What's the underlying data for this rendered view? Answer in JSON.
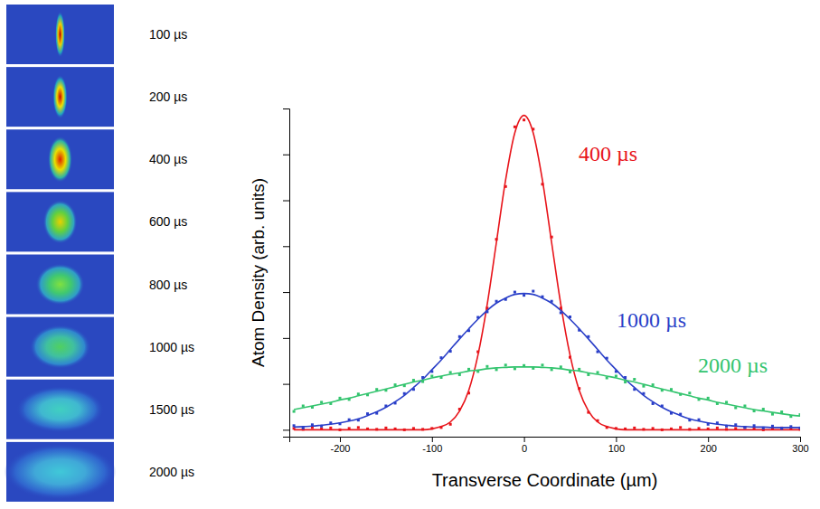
{
  "image_panel": {
    "frames": [
      {
        "label": "100 µs"
      },
      {
        "label": "200 µs"
      },
      {
        "label": "400 µs"
      },
      {
        "label": "600 µs"
      },
      {
        "label": "800 µs"
      },
      {
        "label": "1000 µs"
      },
      {
        "label": "1500 µs"
      },
      {
        "label": "2000 µs"
      }
    ]
  },
  "chart_data": {
    "type": "scatter",
    "xlabel": "Transverse Coordinate (µm)",
    "ylabel": "Atom Density (arb. units)",
    "xlim": [
      -255,
      300
    ],
    "ylim": [
      -0.15,
      7
    ],
    "xticks": [
      -200,
      -100,
      0,
      100,
      200,
      300
    ],
    "yticks": [
      0,
      1,
      2,
      3,
      4,
      5,
      6
    ],
    "tick_labels": "x",
    "grid": false,
    "x": [
      -250,
      -240,
      -230,
      -220,
      -210,
      -200,
      -190,
      -180,
      -170,
      -160,
      -150,
      -140,
      -130,
      -120,
      -110,
      -100,
      -90,
      -80,
      -70,
      -60,
      -50,
      -40,
      -30,
      -20,
      -10,
      0,
      10,
      20,
      30,
      40,
      50,
      60,
      70,
      80,
      90,
      100,
      110,
      120,
      130,
      140,
      150,
      160,
      170,
      180,
      190,
      200,
      210,
      220,
      230,
      240,
      250,
      260,
      270,
      280,
      290,
      300
    ],
    "series": [
      {
        "name": "400 µs",
        "color": "#e8141a",
        "marker": "square",
        "line_style": "solid",
        "values": [
          0.03,
          0.01,
          0.05,
          0.02,
          0.04,
          0.0,
          0.03,
          0.05,
          0.02,
          0.01,
          0.04,
          0.02,
          0.0,
          0.03,
          0.01,
          0.03,
          0.05,
          0.12,
          0.45,
          0.8,
          1.7,
          2.65,
          4.15,
          5.3,
          6.6,
          6.75,
          6.55,
          5.35,
          4.2,
          2.65,
          1.58,
          0.9,
          0.38,
          0.2,
          0.05,
          0.03,
          0.02,
          0.04,
          0.01,
          0.03,
          0.0,
          0.02,
          0.05,
          0.01,
          0.03,
          0.02,
          0.04,
          0.01,
          0.03,
          0.05,
          0.02,
          0.0,
          0.03,
          0.04,
          0.02,
          0.01
        ],
        "fit": [
          0,
          0,
          0,
          0,
          0,
          0,
          0,
          0,
          0,
          0,
          0,
          0,
          0,
          0,
          0,
          0.02,
          0.07,
          0.17,
          0.41,
          0.86,
          1.63,
          2.73,
          4.08,
          5.44,
          6.47,
          6.85,
          6.47,
          5.44,
          4.08,
          2.73,
          1.63,
          0.86,
          0.41,
          0.17,
          0.07,
          0.02,
          0,
          0,
          0,
          0,
          0,
          0,
          0,
          0,
          0,
          0,
          0,
          0,
          0,
          0,
          0,
          0,
          0,
          0,
          0,
          0
        ]
      },
      {
        "name": "1000 µs",
        "color": "#2a3fc8",
        "marker": "square",
        "line_style": "solid",
        "values": [
          0.09,
          0.04,
          0.11,
          0.08,
          0.15,
          0.13,
          0.22,
          0.21,
          0.35,
          0.36,
          0.52,
          0.58,
          0.79,
          0.88,
          1.14,
          1.27,
          1.57,
          1.71,
          2.03,
          2.16,
          2.45,
          2.57,
          2.8,
          2.84,
          3.0,
          2.93,
          3.02,
          2.9,
          2.8,
          2.55,
          2.46,
          2.17,
          2.03,
          1.7,
          1.56,
          1.27,
          1.14,
          0.88,
          0.79,
          0.57,
          0.52,
          0.36,
          0.34,
          0.21,
          0.22,
          0.12,
          0.15,
          0.08,
          0.11,
          0.05,
          0.09,
          0.04,
          0.08,
          0.03,
          0.07,
          0.04
        ],
        "fit": [
          0.06,
          0.07,
          0.08,
          0.1,
          0.12,
          0.15,
          0.19,
          0.24,
          0.31,
          0.39,
          0.49,
          0.61,
          0.75,
          0.92,
          1.1,
          1.31,
          1.52,
          1.75,
          1.98,
          2.2,
          2.41,
          2.6,
          2.76,
          2.87,
          2.95,
          2.97,
          2.95,
          2.87,
          2.76,
          2.6,
          2.41,
          2.2,
          1.98,
          1.75,
          1.52,
          1.31,
          1.1,
          0.92,
          0.75,
          0.61,
          0.49,
          0.39,
          0.31,
          0.24,
          0.19,
          0.15,
          0.12,
          0.1,
          0.08,
          0.07,
          0.06,
          0.06,
          0.05,
          0.05,
          0.05,
          0.05
        ]
      },
      {
        "name": "2000 µs",
        "color": "#33c46e",
        "marker": "square",
        "line_style": "solid",
        "values": [
          0.4,
          0.52,
          0.49,
          0.6,
          0.57,
          0.69,
          0.66,
          0.78,
          0.76,
          0.88,
          0.86,
          0.98,
          0.96,
          1.08,
          1.05,
          1.17,
          1.14,
          1.25,
          1.2,
          1.32,
          1.27,
          1.38,
          1.31,
          1.41,
          1.33,
          1.4,
          1.34,
          1.41,
          1.31,
          1.37,
          1.26,
          1.32,
          1.2,
          1.25,
          1.13,
          1.17,
          1.04,
          1.1,
          0.95,
          0.98,
          0.86,
          0.88,
          0.77,
          0.8,
          0.66,
          0.69,
          0.57,
          0.6,
          0.48,
          0.52,
          0.41,
          0.45,
          0.34,
          0.39,
          0.29,
          0.33
        ],
        "fit": [
          0.44,
          0.48,
          0.52,
          0.56,
          0.6,
          0.65,
          0.69,
          0.74,
          0.79,
          0.84,
          0.89,
          0.94,
          0.99,
          1.04,
          1.08,
          1.13,
          1.17,
          1.21,
          1.24,
          1.28,
          1.3,
          1.33,
          1.35,
          1.36,
          1.37,
          1.37,
          1.37,
          1.36,
          1.35,
          1.33,
          1.3,
          1.28,
          1.24,
          1.21,
          1.17,
          1.13,
          1.08,
          1.04,
          0.99,
          0.94,
          0.89,
          0.84,
          0.79,
          0.74,
          0.69,
          0.65,
          0.6,
          0.56,
          0.52,
          0.48,
          0.44,
          0.41,
          0.38,
          0.35,
          0.32,
          0.3
        ]
      }
    ]
  }
}
